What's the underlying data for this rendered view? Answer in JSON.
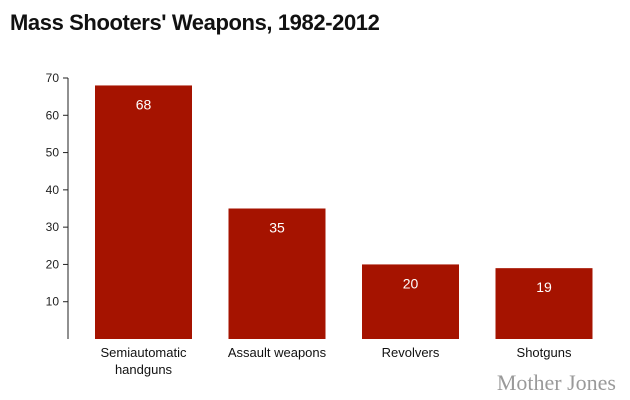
{
  "chart_data": {
    "type": "bar",
    "title": "Mass Shooters' Weapons, 1982-2012",
    "categories": [
      [
        "Semiautomatic",
        "handguns"
      ],
      [
        "Assault weapons"
      ],
      [
        "Revolvers"
      ],
      [
        "Shotguns"
      ]
    ],
    "values": [
      68,
      35,
      20,
      19
    ],
    "data_labels": [
      "68",
      "35",
      "20",
      "19"
    ],
    "yticks": [
      10,
      20,
      30,
      40,
      50,
      60,
      70
    ],
    "ylim": [
      0,
      70
    ],
    "xlabel": "",
    "ylabel": "",
    "grid": false,
    "bar_color": "#a51300"
  },
  "logo": "Mother Jones"
}
